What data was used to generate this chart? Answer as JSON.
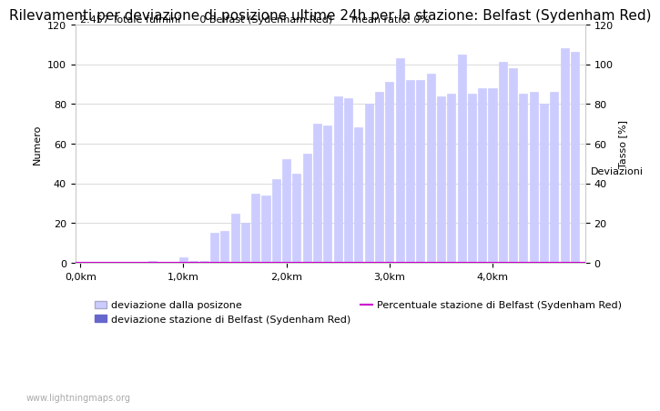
{
  "title": "Rilevamenti per deviazione di posizione ultime 24h per la stazione: Belfast (Sydenham Red)",
  "subtitle": "2.457 Totale fulmini      0 Belfast (Sydenham Red)      mean ratio: 0%",
  "xlabel_right": "Deviazioni",
  "ylabel_left": "Numero",
  "ylabel_right": "Tasso [%]",
  "watermark": "www.lightningmaps.org",
  "bar_positions": [
    0.1,
    0.2,
    0.3,
    0.4,
    0.5,
    0.6,
    0.7,
    0.8,
    0.9,
    1.0,
    1.1,
    1.2,
    1.3,
    1.4,
    1.5,
    1.6,
    1.7,
    1.8,
    1.9,
    2.0,
    2.1,
    2.2,
    2.3,
    2.4,
    2.5,
    2.6,
    2.7,
    2.8,
    2.9,
    3.0,
    3.1,
    3.2,
    3.3,
    3.4,
    3.5,
    3.6,
    3.7,
    3.8,
    3.9,
    4.0,
    4.1,
    4.2,
    4.3,
    4.4,
    4.5,
    4.6,
    4.7,
    4.8
  ],
  "bar_heights": [
    0,
    0,
    0,
    0,
    0,
    0,
    1,
    0,
    0,
    3,
    1,
    1,
    15,
    16,
    25,
    20,
    35,
    34,
    42,
    52,
    45,
    55,
    70,
    69,
    84,
    83,
    68,
    80,
    86,
    91,
    103,
    92,
    92,
    95,
    84,
    85,
    105,
    85,
    88,
    88,
    101,
    98,
    85,
    86,
    80,
    86,
    108,
    106
  ],
  "xtick_positions": [
    0.0,
    1.0,
    2.0,
    3.0,
    4.0
  ],
  "xtick_labels": [
    "0,0km",
    "1,0km",
    "2,0km",
    "3,0km",
    "4,0km"
  ],
  "ytick_left": [
    0,
    20,
    40,
    60,
    80,
    100,
    120
  ],
  "ytick_right": [
    0,
    20,
    40,
    60,
    80,
    100,
    120
  ],
  "ylim": [
    0,
    120
  ],
  "xlim": [
    -0.05,
    4.9
  ],
  "bar_color_light": "#ccccff",
  "bar_color_dark": "#6666cc",
  "pct_line_color": "#cc00cc",
  "bg_color": "#ffffff",
  "grid_color": "#cccccc",
  "legend_label_light": "deviazione dalla posizone",
  "legend_label_dark": "deviazione stazione di Belfast (Sydenham Red)",
  "legend_label_pct": "Percentuale stazione di Belfast (Sydenham Red)",
  "title_fontsize": 11,
  "subtitle_fontsize": 8,
  "axis_fontsize": 8,
  "tick_fontsize": 8
}
